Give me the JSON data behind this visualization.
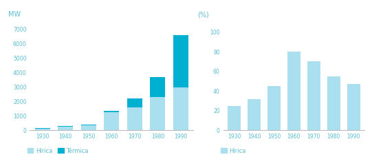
{
  "years": [
    1930,
    1940,
    1950,
    1960,
    1970,
    1980,
    1990
  ],
  "hidrica_mw": [
    100,
    250,
    350,
    1250,
    1600,
    2300,
    3000
  ],
  "termica_mw": [
    50,
    50,
    50,
    100,
    600,
    1400,
    3600
  ],
  "hidrica_pct": [
    25,
    32,
    45,
    80,
    70,
    55,
    47
  ],
  "color_hidrica": "#aadff0",
  "color_termica": "#00b0d0",
  "ylabel_left": "MW",
  "ylabel_right": "(%)",
  "legend_hidrica": "Hírica",
  "legend_termica": "Térmica",
  "ylim_left": [
    0,
    7500
  ],
  "ylim_right": [
    0,
    110
  ],
  "yticks_left": [
    0,
    1000,
    2000,
    3000,
    4000,
    5000,
    6000,
    7000
  ],
  "yticks_right": [
    0,
    20,
    40,
    60,
    80,
    100
  ],
  "label_color": "#5bbcd0",
  "axis_color": "#bbbbbb",
  "bg_color": "#ffffff"
}
